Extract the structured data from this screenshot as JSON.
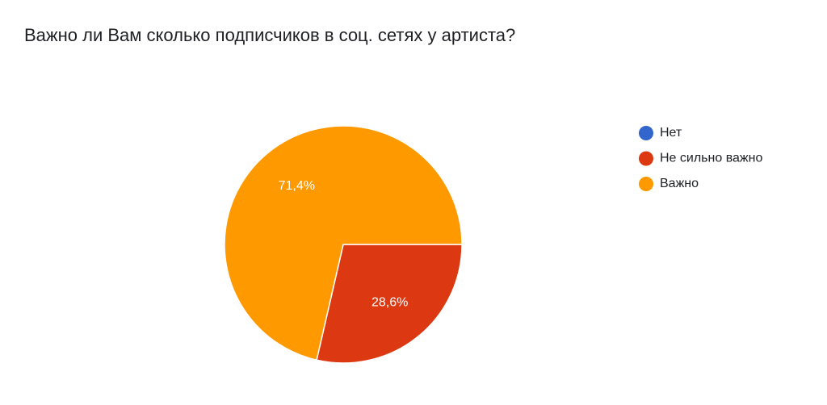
{
  "chart_data": {
    "type": "pie",
    "title": "Важно ли Вам сколько подписчиков в соц. сетях у артиста?",
    "categories": [
      "Нет",
      "Не сильно важно",
      "Важно"
    ],
    "values": [
      0,
      28.6,
      71.4
    ],
    "value_labels": [
      null,
      "28,6%",
      "71,4%"
    ],
    "colors": [
      "#3366cc",
      "#dc3912",
      "#ff9900"
    ],
    "legend": "right"
  }
}
